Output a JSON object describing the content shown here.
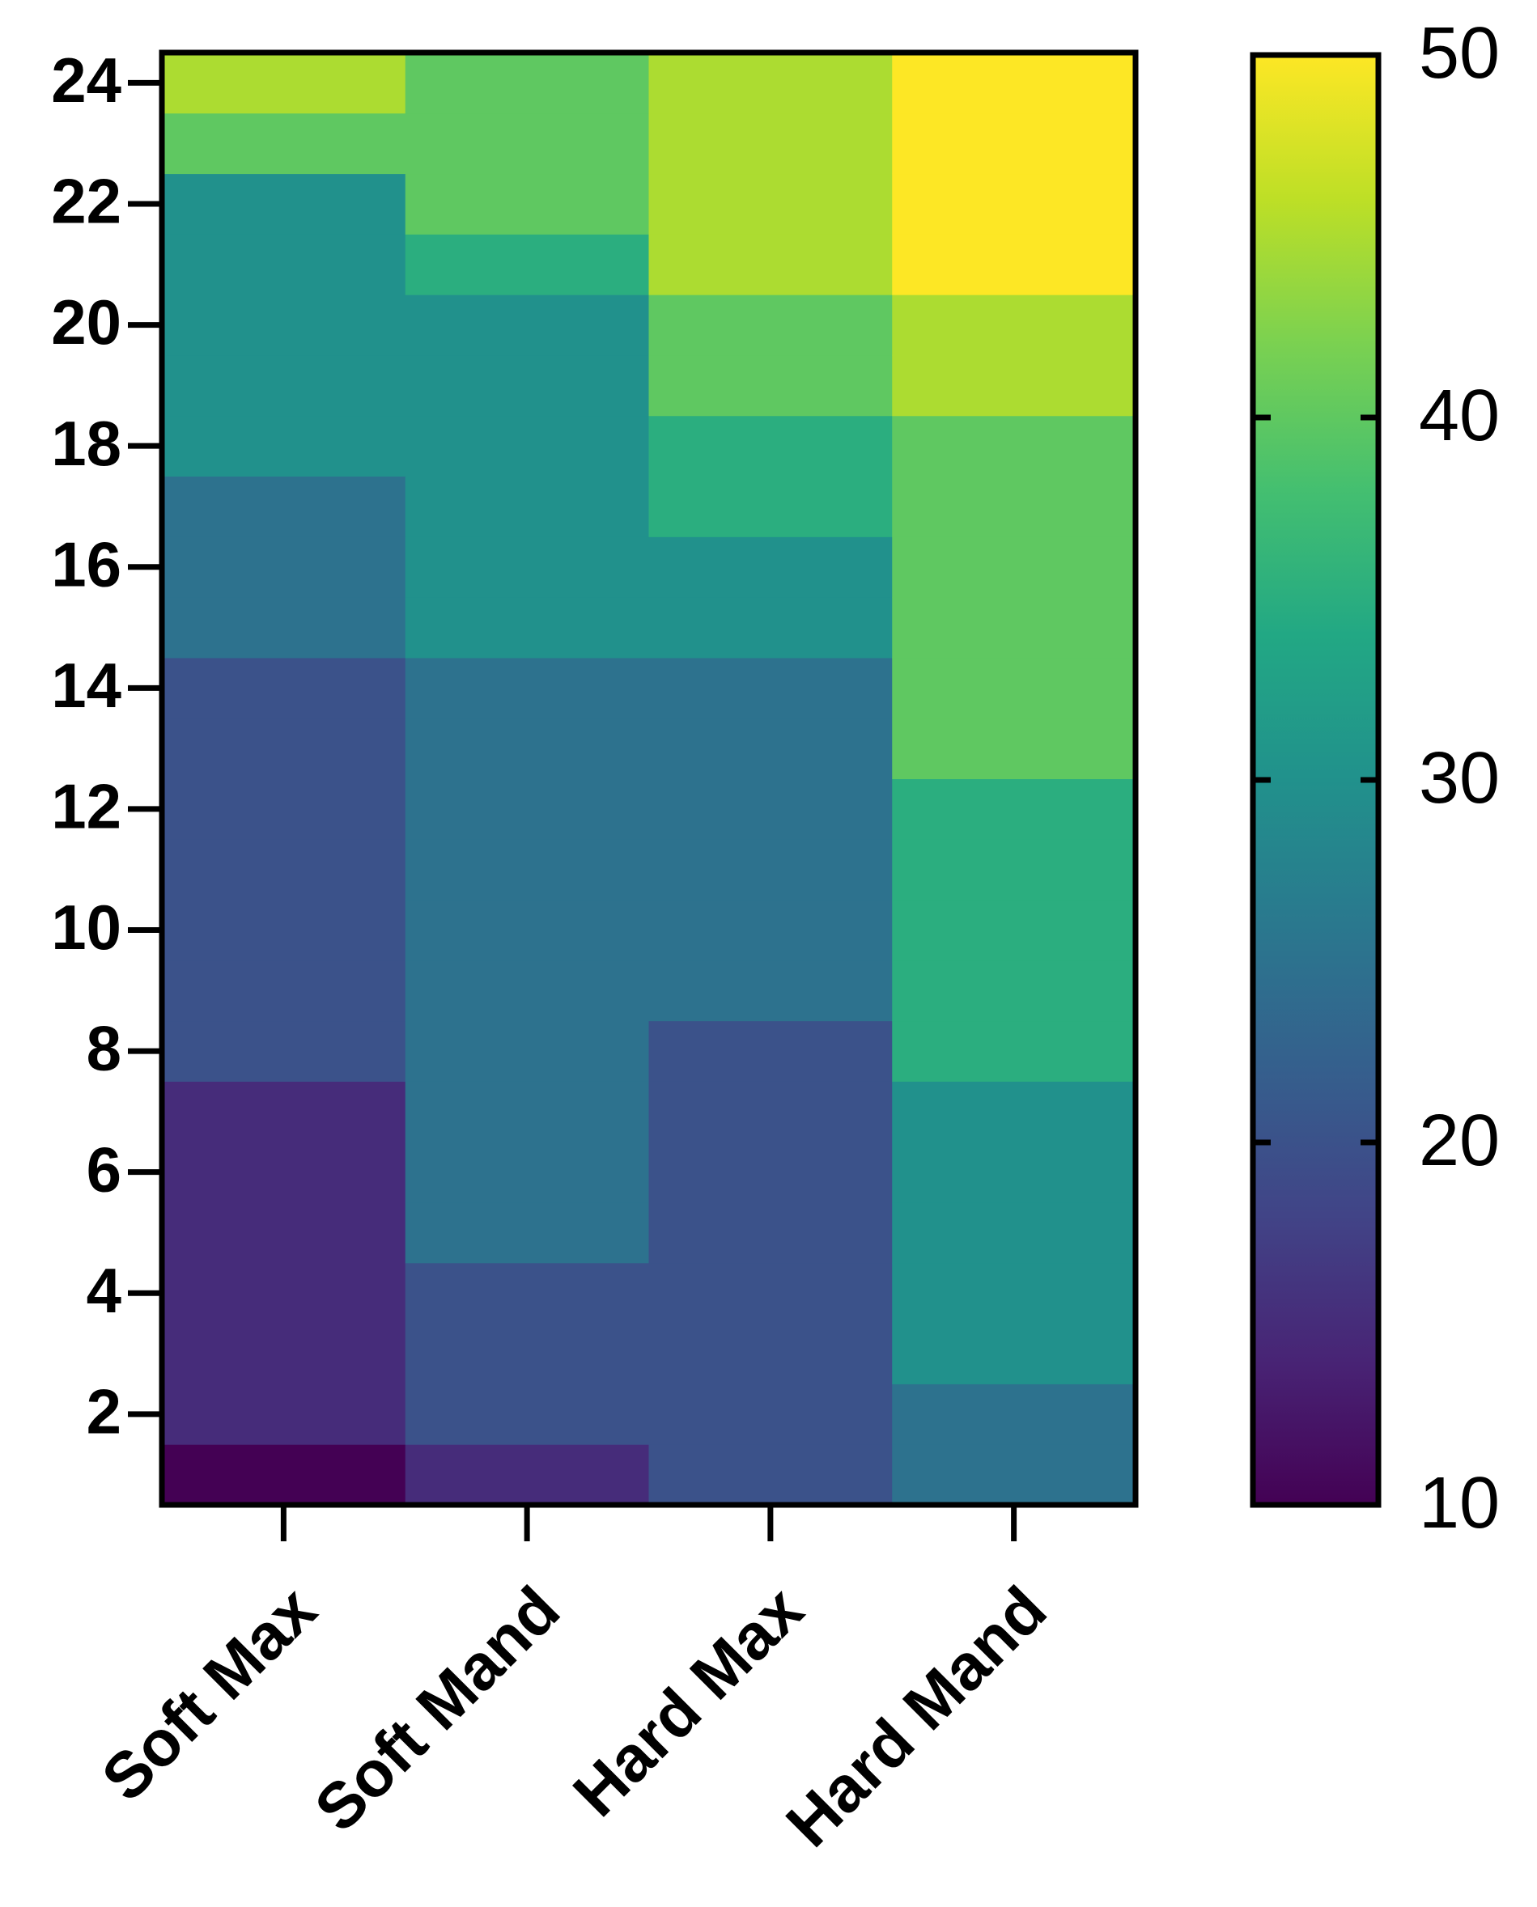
{
  "chart_data": {
    "type": "heatmap",
    "x": [
      "Soft Max",
      "Soft Mand",
      "Hard Max",
      "Hard Mand"
    ],
    "y": [
      1,
      2,
      3,
      4,
      5,
      6,
      7,
      8,
      9,
      10,
      11,
      12,
      13,
      14,
      15,
      16,
      17,
      18,
      19,
      20,
      21,
      22,
      23,
      24
    ],
    "z": [
      [
        10,
        15,
        15,
        15,
        15,
        15,
        15,
        20,
        20,
        20,
        20,
        20,
        20,
        20,
        25,
        25,
        25,
        30,
        30,
        30,
        30,
        30,
        40,
        45
      ],
      [
        15,
        20,
        20,
        20,
        25,
        25,
        25,
        25,
        25,
        25,
        25,
        25,
        25,
        25,
        30,
        30,
        30,
        30,
        30,
        30,
        35,
        40,
        40,
        40
      ],
      [
        20,
        20,
        20,
        20,
        20,
        20,
        20,
        20,
        25,
        25,
        25,
        25,
        25,
        25,
        30,
        30,
        35,
        35,
        40,
        40,
        45,
        45,
        45,
        45
      ],
      [
        25,
        25,
        30,
        30,
        30,
        30,
        30,
        35,
        35,
        35,
        35,
        35,
        40,
        40,
        40,
        40,
        40,
        40,
        45,
        45,
        50,
        50,
        50,
        50
      ]
    ],
    "ylim": [
      0.5,
      24.5
    ],
    "yticks": [
      2,
      4,
      6,
      8,
      10,
      12,
      14,
      16,
      18,
      20,
      22,
      24
    ],
    "zlim": [
      10,
      50
    ],
    "zticks": [
      10,
      20,
      30,
      40,
      50
    ],
    "colormap": "viridis"
  }
}
